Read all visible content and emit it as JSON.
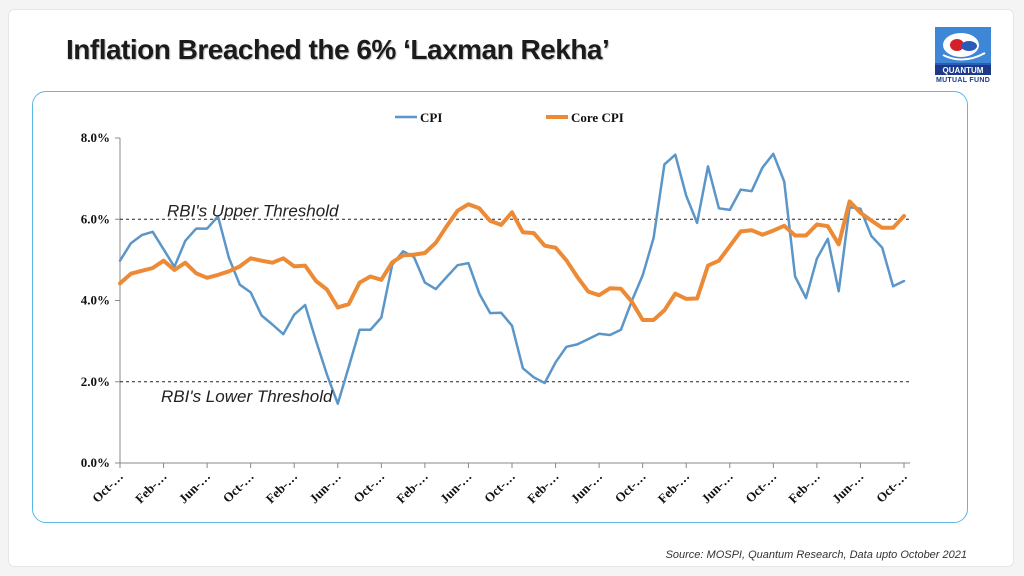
{
  "title": "Inflation Breached the 6% ‘Laxman Rekha’",
  "logo": {
    "text": "QUANTUM",
    "subtext": "MUTUAL FUND"
  },
  "source": "Source: MOSPI, Quantum Research, Data upto October 2021",
  "colors": {
    "cpi": "#5b96c9",
    "core_cpi": "#ec8a35",
    "frame": "#5ab7e6"
  },
  "chart_data": {
    "type": "line",
    "title": "",
    "xlabel": "",
    "ylabel": "",
    "ylim": [
      0,
      8
    ],
    "yticks": [
      "0.0%",
      "2.0%",
      "4.0%",
      "6.0%",
      "8.0%"
    ],
    "yticks_values": [
      0,
      2,
      4,
      6,
      8
    ],
    "x_tick_labels": [
      "Oct-…",
      "Feb-…",
      "Jun-…",
      "Oct-…",
      "Feb-…",
      "Jun-…",
      "Oct-…",
      "Feb-…",
      "Jun-…",
      "Oct-…",
      "Feb-…",
      "Jun-…",
      "Oct-…",
      "Feb-…",
      "Jun-…",
      "Oct-…",
      "Feb-…",
      "Jun-…",
      "Oct-…"
    ],
    "legend": {
      "position": "top"
    },
    "grid": false,
    "annotations": [
      {
        "text": "RBI's Upper Threshold",
        "y": 6
      },
      {
        "text": "RBI's Lower Threshold",
        "y": 2
      }
    ],
    "series": [
      {
        "name": "CPI",
        "values": [
          4.98,
          5.41,
          5.61,
          5.69,
          5.26,
          4.83,
          5.47,
          5.77,
          5.77,
          6.07,
          5.05,
          4.39,
          4.2,
          3.63,
          3.41,
          3.17,
          3.65,
          3.89,
          3.01,
          2.18,
          1.46,
          2.36,
          3.28,
          3.28,
          3.58,
          4.88,
          5.21,
          5.07,
          4.44,
          4.28,
          4.58,
          4.87,
          4.92,
          4.17,
          3.69,
          3.7,
          3.38,
          2.33,
          2.11,
          1.97,
          2.48,
          2.86,
          2.92,
          3.05,
          3.18,
          3.15,
          3.28,
          3.99,
          4.62,
          5.54,
          7.35,
          7.59,
          6.58,
          5.91,
          7.3,
          6.27,
          6.23,
          6.73,
          6.69,
          7.27,
          7.61,
          6.93,
          4.59,
          4.06,
          5.03,
          5.52,
          4.23,
          6.3,
          6.26,
          5.59,
          5.3,
          4.35,
          4.48
        ]
      },
      {
        "name": "Core CPI",
        "values": [
          4.42,
          4.66,
          4.73,
          4.8,
          4.98,
          4.75,
          4.93,
          4.67,
          4.56,
          4.63,
          4.72,
          4.84,
          5.04,
          4.98,
          4.93,
          5.04,
          4.84,
          4.86,
          4.48,
          4.27,
          3.83,
          3.91,
          4.44,
          4.59,
          4.51,
          4.94,
          5.11,
          5.13,
          5.17,
          5.42,
          5.83,
          6.21,
          6.37,
          6.27,
          5.96,
          5.86,
          6.17,
          5.68,
          5.66,
          5.35,
          5.3,
          4.99,
          4.58,
          4.22,
          4.13,
          4.3,
          4.29,
          3.97,
          3.52,
          3.52,
          3.76,
          4.17,
          4.04,
          4.05,
          4.86,
          4.98,
          5.34,
          5.7,
          5.73,
          5.62,
          5.72,
          5.84,
          5.6,
          5.6,
          5.87,
          5.83,
          5.38,
          6.44,
          6.16,
          5.97,
          5.79,
          5.79,
          6.08
        ]
      }
    ]
  }
}
